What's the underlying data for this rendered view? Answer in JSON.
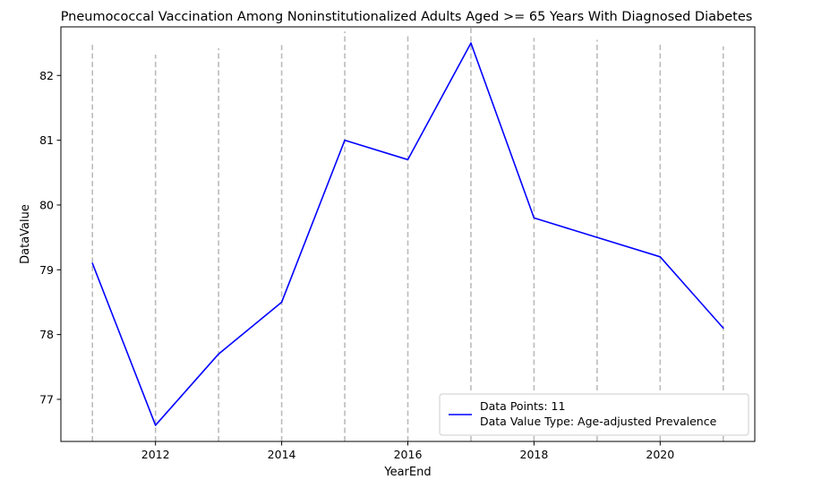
{
  "chart_data": {
    "type": "line",
    "title": "Pneumococcal Vaccination Among Noninstitutionalized Adults Aged >= 65 Years With Diagnosed Diabetes",
    "xlabel": "YearEnd",
    "ylabel": "DataValue",
    "x": [
      2011,
      2012,
      2013,
      2014,
      2015,
      2016,
      2017,
      2018,
      2019,
      2020,
      2021
    ],
    "series": [
      {
        "values": [
          79.1,
          76.6,
          77.7,
          78.5,
          81.0,
          80.7,
          82.5,
          79.8,
          79.5,
          79.2,
          78.1
        ],
        "color": "#0000ff"
      }
    ],
    "xlim": [
      2010.5,
      2021.5
    ],
    "ylim": [
      76.35,
      82.75
    ],
    "xticks": [
      2012,
      2014,
      2016,
      2018,
      2020
    ],
    "yticks": [
      77,
      78,
      79,
      80,
      81,
      82
    ],
    "vlines": {
      "color": "#bbbbbb",
      "tops": [
        82.52,
        82.32,
        82.42,
        82.47,
        82.68,
        82.62,
        82.75,
        82.58,
        82.55,
        82.52,
        82.45
      ]
    },
    "legend": {
      "position": "lower right",
      "lines": [
        "Data Points: 11",
        "Data Value Type: Age-adjusted Prevalence"
      ]
    },
    "grid": false
  }
}
